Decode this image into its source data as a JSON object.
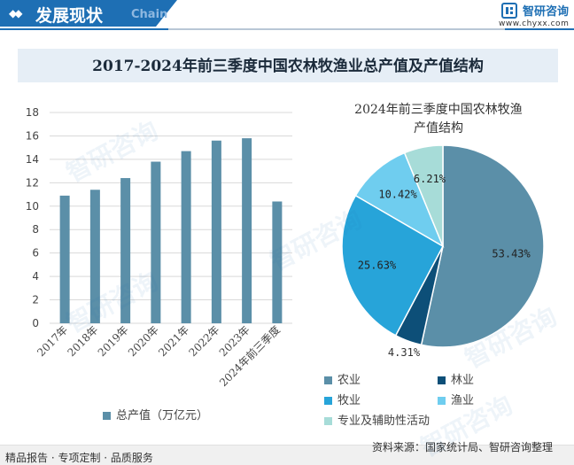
{
  "header": {
    "section_title": "发展现状",
    "section_subtitle": "Chain",
    "brand_name": "智研咨询",
    "brand_url": "www.chyxx.com"
  },
  "colors": {
    "brand_blue": "#1e6fb4",
    "bar_color": "#5b8fa8"
  },
  "chart_title": "2017-2024年前三季度中国农林牧渔业总产值及产值结构",
  "chart_data": [
    {
      "type": "bar",
      "categories": [
        "2017年",
        "2018年",
        "2019年",
        "2020年",
        "2021年",
        "2022年",
        "2023年",
        "2024年前三季度"
      ],
      "series": [
        {
          "name": "总产值（万亿元）",
          "values": [
            10.9,
            11.4,
            12.4,
            13.8,
            14.7,
            15.6,
            15.8,
            10.4
          ]
        }
      ],
      "ylim": [
        0,
        18
      ],
      "yticks": [
        0,
        2,
        4,
        6,
        8,
        10,
        12,
        14,
        16,
        18
      ],
      "grid": true,
      "legend": "bottom"
    },
    {
      "type": "pie",
      "title_lines": [
        "2024年前三季度中国农林牧渔",
        "产值结构"
      ],
      "slices": [
        {
          "name": "农业",
          "value": 53.43,
          "label": "53.43%",
          "color": "#5b8fa8"
        },
        {
          "name": "林业",
          "value": 4.31,
          "label": "4.31%",
          "color": "#0d4f78"
        },
        {
          "name": "牧业",
          "value": 25.63,
          "label": "25.63%",
          "color": "#27a4d9"
        },
        {
          "name": "渔业",
          "value": 10.42,
          "label": "10.42%",
          "color": "#6fcdef"
        },
        {
          "name": "专业及辅助性活动",
          "value": 6.21,
          "label": "6.21%",
          "color": "#a7dcd8"
        }
      ],
      "legend": "bottom"
    }
  ],
  "footer": {
    "left_text": "精品报告 · 专项定制 · 品质服务",
    "source_text": "资料来源：国家统计局、智研咨询整理"
  },
  "watermark_text": "智研咨询"
}
